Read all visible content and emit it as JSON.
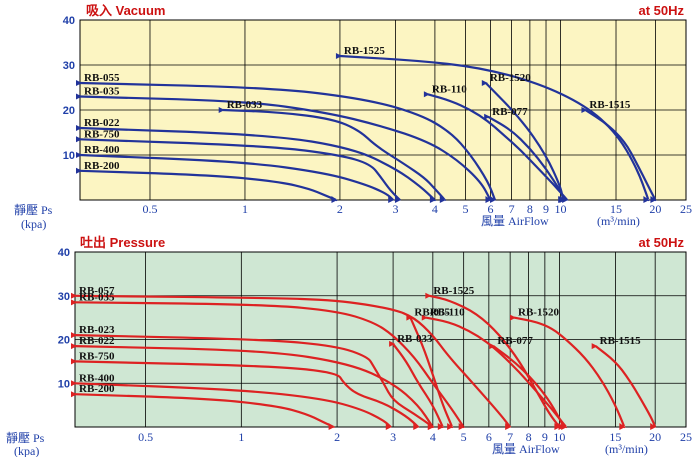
{
  "chart_data": [
    {
      "type": "line",
      "title": "吸入 Vacuum",
      "frequency": "at 50Hz",
      "ylabel": "靜壓 Ps",
      "yunit": "(kpa)",
      "xlabel": "風量 AirFlow",
      "xunit": "(m³/min)",
      "ylim": [
        0,
        40
      ],
      "yticks": [
        10,
        20,
        30,
        40
      ],
      "xticks": [
        "0.5",
        "1",
        "2",
        "3",
        "4",
        "5",
        "6",
        "7",
        "8",
        "9",
        "10",
        "15",
        "20",
        "25"
      ],
      "log_x": true,
      "line_color": "#22339a",
      "series": [
        {
          "name": "RB-200",
          "x": [
            0.3,
            0.8,
            1.3,
            1.6,
            1.8,
            1.95
          ],
          "y": [
            6.5,
            5.5,
            4,
            2.5,
            1,
            0
          ],
          "label_at": [
            0.3,
            6.5
          ]
        },
        {
          "name": "RB-400",
          "x": [
            0.3,
            1.0,
            1.8,
            2.4,
            2.8,
            2.95
          ],
          "y": [
            10,
            8.5,
            6,
            3.5,
            1.5,
            0
          ],
          "label_at": [
            0.3,
            10
          ]
        },
        {
          "name": "RB-750",
          "x": [
            0.3,
            1.2,
            2.0,
            2.5,
            2.7,
            2.9,
            3.1
          ],
          "y": [
            13.5,
            12,
            10,
            8,
            5,
            2,
            0
          ],
          "label_at": [
            0.3,
            13.5
          ]
        },
        {
          "name": "RB-022",
          "x": [
            0.3,
            1.2,
            2.2,
            3.0,
            3.6,
            4.0
          ],
          "y": [
            16,
            14.5,
            11.5,
            7,
            3,
            0
          ],
          "label_at": [
            0.3,
            16
          ]
        },
        {
          "name": "RB-033",
          "x": [
            0.85,
            1.3,
            1.9,
            2.3,
            2.6,
            3.2,
            3.7,
            4.0,
            4.3
          ],
          "y": [
            20,
            19.5,
            18,
            15.5,
            12,
            8,
            5,
            2.5,
            0
          ],
          "label_at": [
            0.85,
            20
          ]
        },
        {
          "name": "RB-035",
          "x": [
            0.3,
            1.0,
            1.8,
            2.7,
            3.8,
            4.7,
            5.6,
            6.0
          ],
          "y": [
            23,
            22,
            19.5,
            16.5,
            13,
            9,
            4,
            0
          ],
          "label_at": [
            0.3,
            23
          ]
        },
        {
          "name": "RB-055",
          "x": [
            0.3,
            1.2,
            2.4,
            3.6,
            4.5,
            5.2,
            5.9,
            6.2
          ],
          "y": [
            26,
            25,
            22.5,
            19,
            15,
            10,
            4,
            0
          ],
          "label_at": [
            0.3,
            26
          ]
        },
        {
          "name": "RB-110",
          "x": [
            3.8,
            4.5,
            5.2,
            5.9,
            6.6,
            7.5,
            8.5,
            9.5,
            10.5
          ],
          "y": [
            23.5,
            22,
            20,
            17.5,
            14.5,
            11,
            7,
            3.5,
            0
          ],
          "label_at": [
            3.8,
            23.5
          ]
        },
        {
          "name": "RB-077",
          "x": [
            5.9,
            7.0,
            8.0,
            9.0,
            10.0,
            10.3
          ],
          "y": [
            18.5,
            15.5,
            11.5,
            7,
            2,
            0
          ],
          "label_at": [
            5.9,
            18.5
          ]
        },
        {
          "name": "RB-1525",
          "x": [
            2.0,
            3.5,
            5.5,
            8.5,
            12.0,
            15.0,
            17.5,
            19.0
          ],
          "y": [
            32,
            31,
            29.5,
            26,
            21,
            15,
            7,
            0
          ],
          "label_at": [
            2.0,
            32
          ]
        },
        {
          "name": "RB-1520",
          "x": [
            5.8,
            7.5,
            9.0,
            10.0,
            10.2
          ],
          "y": [
            26,
            18,
            10,
            3,
            0
          ],
          "label_at": [
            5.8,
            26
          ]
        },
        {
          "name": "RB-1515",
          "x": [
            12.0,
            14.0,
            16.0,
            17.5,
            19.0,
            20.0
          ],
          "y": [
            20,
            17,
            13,
            8,
            3,
            0
          ],
          "label_at": [
            12.0,
            20
          ]
        }
      ]
    },
    {
      "type": "line",
      "title": "吐出 Pressure",
      "frequency": "at 50Hz",
      "ylabel": "靜壓 Ps",
      "yunit": "(kpa)",
      "xlabel": "風量 AirFlow",
      "xunit": "(m³/min)",
      "ylim": [
        0,
        40
      ],
      "yticks": [
        10,
        20,
        30,
        40
      ],
      "xticks": [
        "0.5",
        "1",
        "2",
        "3",
        "4",
        "5",
        "6",
        "7",
        "8",
        "9",
        "10",
        "15",
        "20",
        "25"
      ],
      "log_x": true,
      "line_color": "#dd2222",
      "series": [
        {
          "name": "RB-200",
          "x": [
            0.3,
            0.8,
            1.3,
            1.6,
            1.8,
            1.95
          ],
          "y": [
            7.5,
            6.5,
            4.8,
            3,
            1.2,
            0
          ],
          "label_at": [
            0.3,
            7.5
          ]
        },
        {
          "name": "RB-400",
          "x": [
            0.3,
            1.0,
            1.8,
            2.4,
            2.8,
            2.95
          ],
          "y": [
            10,
            8.5,
            6.5,
            4,
            1.5,
            0
          ],
          "label_at": [
            0.3,
            10
          ]
        },
        {
          "name": "RB-750",
          "x": [
            0.3,
            1.2,
            2.0,
            2.1,
            2.3,
            2.8,
            3.3,
            3.6
          ],
          "y": [
            15,
            14,
            12.5,
            10,
            7.5,
            5.5,
            2.5,
            0
          ],
          "label_at": [
            0.3,
            15
          ]
        },
        {
          "name": "RB-022",
          "x": [
            0.3,
            1.2,
            2.2,
            3.0,
            3.6,
            4.0
          ],
          "y": [
            18.5,
            17.5,
            14.5,
            10,
            5,
            0
          ],
          "label_at": [
            0.3,
            18.5
          ]
        },
        {
          "name": "RB-023",
          "x": [
            0.3,
            1.2,
            2.0,
            2.5,
            2.6,
            2.8,
            3.0,
            3.5,
            4.0
          ],
          "y": [
            21,
            20,
            18.5,
            16,
            14,
            10,
            6,
            3,
            0
          ],
          "label_at": [
            0.3,
            21
          ]
        },
        {
          "name": "RB-033",
          "x": [
            3.0,
            3.3,
            3.6,
            4.0,
            4.3
          ],
          "y": [
            19,
            15,
            10,
            5,
            0
          ],
          "label_at": [
            3.0,
            19
          ]
        },
        {
          "name": "RB-035",
          "x": [
            0.3,
            1.2,
            2.0,
            2.6,
            3.0,
            3.5,
            4.0,
            4.6,
            5.0
          ],
          "y": [
            28.5,
            28,
            26.5,
            24,
            21,
            16,
            10,
            4,
            0
          ],
          "label_at": [
            0.3,
            28.5
          ]
        },
        {
          "name": "RB-055",
          "x": [
            3.4,
            3.7,
            4.0,
            4.3,
            4.6
          ],
          "y": [
            25,
            19,
            12,
            5,
            0
          ],
          "label_at": [
            3.4,
            25
          ]
        },
        {
          "name": "RB-057",
          "x": [
            0.3,
            1.2,
            2.0,
            3.0,
            3.5,
            4.0,
            4.5,
            5.5,
            6.5,
            7.0
          ],
          "y": [
            30,
            29.5,
            29,
            27,
            25,
            21,
            16,
            9,
            3,
            0
          ],
          "label_at": [
            0.3,
            30
          ]
        },
        {
          "name": "RB-110",
          "x": [
            3.8,
            4.5,
            5.2,
            5.9,
            6.6,
            7.5,
            8.5,
            9.5,
            10.5
          ],
          "y": [
            25,
            24,
            22,
            19.5,
            16.5,
            12.5,
            8,
            4,
            0
          ],
          "label_at": [
            3.8,
            25
          ]
        },
        {
          "name": "RB-077",
          "x": [
            6.2,
            7.2,
            8.2,
            9.2,
            10.0,
            10.3
          ],
          "y": [
            18.5,
            15,
            11,
            6.5,
            2,
            0
          ],
          "label_at": [
            6.2,
            18.5
          ]
        },
        {
          "name": "RB-1525",
          "x": [
            3.9,
            4.5,
            5.5,
            6.5,
            7.5,
            8.5,
            9.3,
            10.0
          ],
          "y": [
            30,
            29,
            26,
            21,
            15,
            8,
            3,
            0
          ],
          "label_at": [
            3.9,
            30
          ]
        },
        {
          "name": "RB-1520",
          "x": [
            7.2,
            8.5,
            9.5,
            10.5,
            12.0,
            13.5,
            15.0,
            16.0
          ],
          "y": [
            25,
            24,
            22.5,
            20,
            16,
            11,
            5,
            0
          ],
          "label_at": [
            7.2,
            25
          ]
        },
        {
          "name": "RB-1515",
          "x": [
            13.0,
            15.0,
            16.5,
            18.0,
            19.5,
            20.0
          ],
          "y": [
            18.5,
            15,
            11,
            6.5,
            2,
            0
          ],
          "label_at": [
            13.0,
            18.5
          ]
        }
      ]
    }
  ]
}
